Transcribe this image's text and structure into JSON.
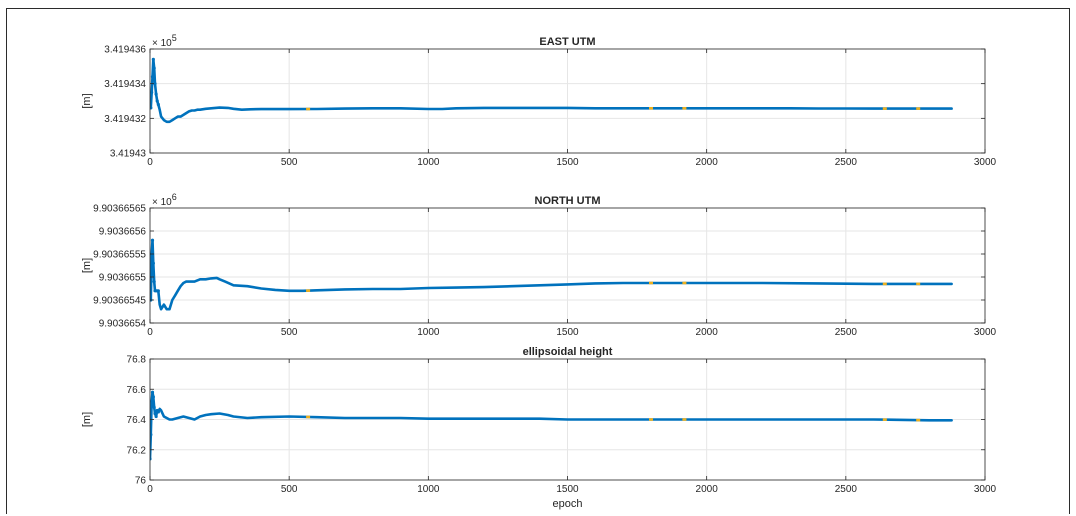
{
  "colors": {
    "series": "#0072BD",
    "highlight": "#EDB120",
    "grid": "#e6e6e6",
    "axis": "#262626"
  },
  "chart_data": [
    {
      "type": "line",
      "title": "EAST UTM",
      "ylabel": "[m]",
      "xlabel": "",
      "exponent_base": "× 10",
      "exponent_power": "5",
      "xlim": [
        0,
        3000
      ],
      "ylim": [
        341943.0,
        341943.6
      ],
      "xticks": [
        0,
        500,
        1000,
        1500,
        2000,
        2500,
        3000
      ],
      "xtick_labels": [
        "0",
        "500",
        "1000",
        "1500",
        "2000",
        "2500",
        "3000"
      ],
      "yticks": [
        341943.0,
        341943.2,
        341943.4,
        341943.6
      ],
      "ytick_labels": [
        "3.41943",
        "3.419432",
        "3.419434",
        "3.419436"
      ],
      "grid": true,
      "highlight_x": [
        568,
        1800,
        1920,
        2640,
        2760
      ],
      "series": [
        {
          "x": [
            0,
            3,
            6,
            9,
            12,
            15,
            18,
            22,
            26,
            30,
            35,
            40,
            50,
            60,
            70,
            80,
            90,
            100,
            110,
            120,
            130,
            140,
            150,
            160,
            170,
            180,
            200,
            220,
            250,
            280,
            300,
            330,
            360,
            400,
            500,
            600,
            700,
            800,
            900,
            1000,
            1050,
            1100,
            1200,
            1300,
            1400,
            1500,
            1600,
            1700,
            1800,
            1900,
            2000,
            2100,
            2200,
            2300,
            2400,
            2500,
            2600,
            2700,
            2800,
            2880
          ],
          "values": [
            341943.29,
            341943.26,
            341943.35,
            341943.44,
            341943.54,
            341943.49,
            341943.4,
            341943.34,
            341943.3,
            341943.28,
            341943.25,
            341943.21,
            341943.19,
            341943.18,
            341943.18,
            341943.19,
            341943.2,
            341943.21,
            341943.21,
            341943.22,
            341943.23,
            341943.24,
            341943.245,
            341943.245,
            341943.25,
            341943.25,
            341943.255,
            341943.258,
            341943.262,
            341943.26,
            341943.255,
            341943.25,
            341943.252,
            341943.253,
            341943.253,
            341943.254,
            341943.256,
            341943.258,
            341943.258,
            341943.254,
            341943.254,
            341943.258,
            341943.26,
            341943.26,
            341943.26,
            341943.26,
            341943.258,
            341943.258,
            341943.258,
            341943.258,
            341943.258,
            341943.258,
            341943.258,
            341943.258,
            341943.257,
            341943.257,
            341943.256,
            341943.256,
            341943.256,
            341943.256
          ]
        }
      ]
    },
    {
      "type": "line",
      "title": "NORTH UTM",
      "ylabel": "[m]",
      "xlabel": "",
      "exponent_base": "× 10",
      "exponent_power": "6",
      "xlim": [
        0,
        3000
      ],
      "ylim": [
        9903665.4,
        9903665.65
      ],
      "xticks": [
        0,
        500,
        1000,
        1500,
        2000,
        2500,
        3000
      ],
      "xtick_labels": [
        "0",
        "500",
        "1000",
        "1500",
        "2000",
        "2500",
        "3000"
      ],
      "yticks": [
        9903665.4,
        9903665.45,
        9903665.5,
        9903665.55,
        9903665.6,
        9903665.65
      ],
      "ytick_labels": [
        "9.9036654",
        "9.90366545",
        "9.9036655",
        "9.90366555",
        "9.9036656",
        "9.90366565"
      ],
      "grid": true,
      "highlight_x": [
        568,
        1800,
        1920,
        2640,
        2760
      ],
      "series": [
        {
          "x": [
            0,
            3,
            6,
            9,
            12,
            15,
            18,
            22,
            26,
            30,
            35,
            40,
            50,
            60,
            70,
            80,
            90,
            100,
            110,
            120,
            130,
            140,
            150,
            160,
            180,
            200,
            220,
            240,
            250,
            270,
            300,
            350,
            400,
            450,
            500,
            550,
            600,
            700,
            800,
            900,
            1000,
            1100,
            1200,
            1300,
            1400,
            1500,
            1600,
            1700,
            1800,
            1900,
            2000,
            2200,
            2400,
            2600,
            2800,
            2880
          ],
          "values": [
            9903665.47,
            9903665.45,
            9903665.55,
            9903665.58,
            9903665.53,
            9903665.49,
            9903665.47,
            9903665.47,
            9903665.47,
            9903665.47,
            9903665.44,
            9903665.43,
            9903665.44,
            9903665.43,
            9903665.43,
            9903665.45,
            9903665.46,
            9903665.47,
            9903665.48,
            9903665.487,
            9903665.49,
            9903665.49,
            9903665.49,
            9903665.49,
            9903665.495,
            9903665.495,
            9903665.497,
            9903665.498,
            9903665.495,
            9903665.49,
            9903665.482,
            9903665.48,
            9903665.475,
            9903665.472,
            9903665.47,
            9903665.47,
            9903665.471,
            9903665.473,
            9903665.474,
            9903665.474,
            9903665.476,
            9903665.477,
            9903665.478,
            9903665.48,
            9903665.482,
            9903665.484,
            9903665.486,
            9903665.487,
            9903665.487,
            9903665.487,
            9903665.487,
            9903665.487,
            9903665.486,
            9903665.485,
            9903665.485,
            9903665.485
          ]
        }
      ]
    },
    {
      "type": "line",
      "title": "ellipsoidal height",
      "ylabel": "[m]",
      "xlabel": "epoch",
      "exponent_base": "",
      "exponent_power": "",
      "xlim": [
        0,
        3000
      ],
      "ylim": [
        76.0,
        76.8
      ],
      "xticks": [
        0,
        500,
        1000,
        1500,
        2000,
        2500,
        3000
      ],
      "xtick_labels": [
        "0",
        "500",
        "1000",
        "1500",
        "2000",
        "2500",
        "3000"
      ],
      "yticks": [
        76.0,
        76.2,
        76.4,
        76.6,
        76.8
      ],
      "ytick_labels": [
        "76",
        "76.2",
        "76.4",
        "76.6",
        "76.8"
      ],
      "grid": true,
      "highlight_x": [
        568,
        1800,
        1920,
        2640,
        2760
      ],
      "series": [
        {
          "x": [
            0,
            3,
            6,
            9,
            12,
            15,
            18,
            22,
            26,
            30,
            35,
            40,
            50,
            60,
            70,
            80,
            100,
            120,
            140,
            160,
            180,
            200,
            220,
            250,
            280,
            300,
            350,
            400,
            500,
            600,
            700,
            800,
            900,
            1000,
            1100,
            1200,
            1300,
            1400,
            1500,
            1600,
            1700,
            1800,
            1900,
            2000,
            2200,
            2400,
            2600,
            2800,
            2880
          ],
          "values": [
            76.14,
            76.3,
            76.52,
            76.58,
            76.55,
            76.48,
            76.44,
            76.42,
            76.46,
            76.45,
            76.47,
            76.46,
            76.42,
            76.41,
            76.4,
            76.4,
            76.41,
            76.42,
            76.41,
            76.4,
            76.42,
            76.43,
            76.435,
            76.44,
            76.43,
            76.42,
            76.41,
            76.415,
            76.42,
            76.415,
            76.41,
            76.41,
            76.41,
            76.405,
            76.405,
            76.405,
            76.405,
            76.405,
            76.4,
            76.4,
            76.4,
            76.4,
            76.4,
            76.4,
            76.4,
            76.4,
            76.4,
            76.395,
            76.395
          ]
        }
      ]
    }
  ]
}
